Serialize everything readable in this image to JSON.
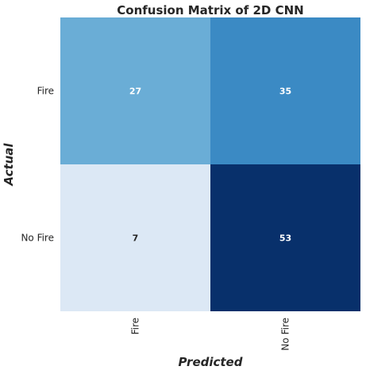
{
  "chart_data": {
    "type": "heatmap",
    "title": "Confusion Matrix of 2D CNN",
    "xlabel": "Predicted",
    "ylabel": "Actual",
    "x_categories": [
      "Fire",
      "No Fire"
    ],
    "y_categories": [
      "Fire",
      "No Fire"
    ],
    "values": [
      [
        27,
        35
      ],
      [
        7,
        53
      ]
    ],
    "colormap": "Blues",
    "colors": {
      "low": "#dce8f5",
      "mid_low": "#6baed6",
      "mid_high": "#3b8ac4",
      "high": "#08306b",
      "text_dark": "#262626",
      "text_light": "#ffffff"
    },
    "grid": false,
    "legend": "none"
  }
}
